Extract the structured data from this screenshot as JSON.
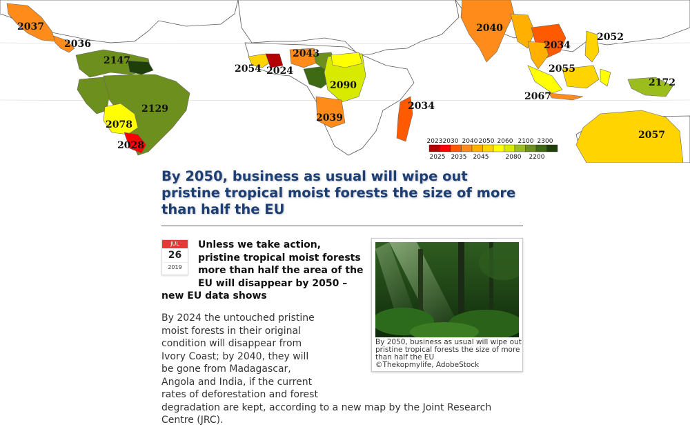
{
  "map": {
    "labels": [
      {
        "id": "mexico",
        "text": "2037"
      },
      {
        "id": "central-america",
        "text": "2036"
      },
      {
        "id": "guyanas",
        "text": "2147"
      },
      {
        "id": "brazil",
        "text": "2129"
      },
      {
        "id": "bolivia",
        "text": "2078"
      },
      {
        "id": "paraguay",
        "text": "2028"
      },
      {
        "id": "liberia",
        "text": "2054"
      },
      {
        "id": "ivory-coast",
        "text": "2024"
      },
      {
        "id": "nigeria",
        "text": "2043"
      },
      {
        "id": "congo-drc",
        "text": "2090"
      },
      {
        "id": "angola",
        "text": "2039"
      },
      {
        "id": "madagascar",
        "text": "2034"
      },
      {
        "id": "india",
        "text": "2040"
      },
      {
        "id": "indochina",
        "text": "2034"
      },
      {
        "id": "philippines",
        "text": "2052"
      },
      {
        "id": "malaysia",
        "text": "2055"
      },
      {
        "id": "indonesia",
        "text": "2067"
      },
      {
        "id": "papua",
        "text": "2172"
      },
      {
        "id": "australia",
        "text": "2057"
      }
    ],
    "legend": {
      "top_ticks": [
        "2023",
        "2030",
        "2040",
        "2050",
        "2060",
        "2100",
        "2300"
      ],
      "bottom_ticks": [
        "2025",
        "2035",
        "2045",
        "2080",
        "2200"
      ],
      "colors": [
        "#b30000",
        "#ff0000",
        "#ff5a00",
        "#ff8c1a",
        "#ffb000",
        "#ffd400",
        "#ffff00",
        "#d7ea00",
        "#9bbd1e",
        "#6d8f1e",
        "#3d6a12",
        "#1e3f0a"
      ]
    }
  },
  "article": {
    "headline": "By 2050, business as usual will wipe out pristine tropical moist forests the size of more than half the EU",
    "date": {
      "month": "JUL",
      "day": "26",
      "year": "2019"
    },
    "lead": "Unless we take action, pristine tropical moist forests more than half the area of the EU will disappear by 2050 – new EU data shows",
    "body": "By 2024 the untouched pristine moist forests in their original condition will disappear from Ivory Coast; by 2040, they will be gone from Madagascar, Angola and India, if the current rates of deforestation and forest degradation are kept, according to a new map by the Joint Research Centre (JRC).",
    "photo_caption": "By 2050, business as usual will wipe out pristine tropical forests the size of more than half the EU",
    "photo_credit": "©Thekopmylife, AdobeStock"
  }
}
